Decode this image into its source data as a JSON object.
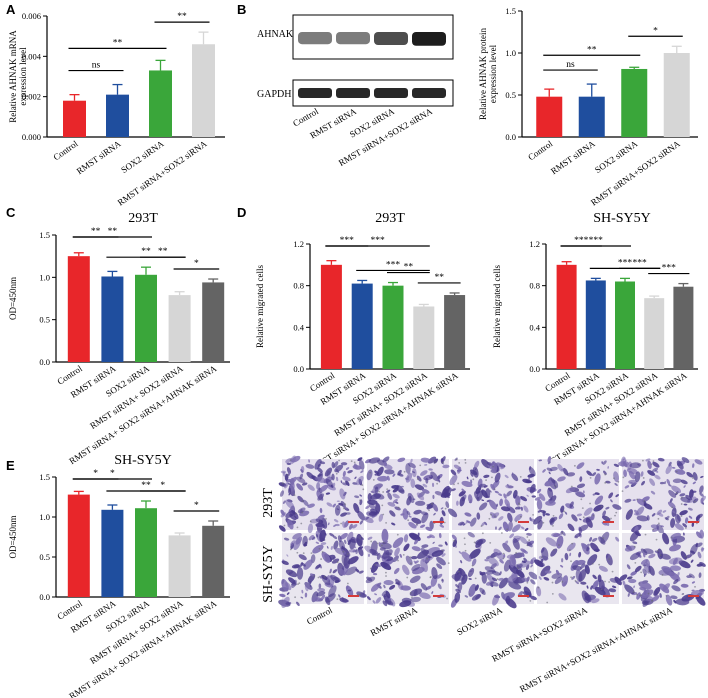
{
  "colors": {
    "control": "#e8262a",
    "rmst": "#1f4e9e",
    "sox2": "#3aa63a",
    "combo": "#d6d6d6",
    "rescue": "#646464",
    "stain_dark": "#4a3b8c",
    "stain_mid": "#7b6cb0",
    "background_well": "#ece8f1"
  },
  "panel_letters": [
    "A",
    "B",
    "C",
    "D",
    "E"
  ],
  "chart_data": [
    {
      "id": "A",
      "type": "bar",
      "title": "",
      "ylabel": "Relative AHNAK mRNA expression level",
      "ylim": [
        0,
        0.006
      ],
      "yticks": [
        "0.000",
        "0.002",
        "0.004",
        "0.006"
      ],
      "categories": [
        "Control",
        "RMST siRNA",
        "SOX2 siRNA",
        "RMST siRNA+SOX2 siRNA"
      ],
      "values": [
        0.0018,
        0.0021,
        0.0033,
        0.0046
      ],
      "errors": [
        0.0003,
        0.0005,
        0.0005,
        0.0006
      ],
      "significance": [
        {
          "from": 0,
          "to": 1,
          "label": "ns"
        },
        {
          "from": 0,
          "to": 2,
          "label": "**"
        },
        {
          "from": 2,
          "to": 3,
          "label": "**"
        }
      ]
    },
    {
      "id": "B",
      "type": "bar",
      "title": "",
      "ylabel": "Relative AHNAK protein expression level",
      "ylim": [
        0,
        1.5
      ],
      "yticks": [
        "0.0",
        "0.5",
        "1.0",
        "1.5"
      ],
      "categories": [
        "Control",
        "RMST siRNA",
        "SOX2 siRNA",
        "RMST siRNA+SOX2 siRNA"
      ],
      "values": [
        0.48,
        0.48,
        0.81,
        1.0
      ],
      "errors": [
        0.09,
        0.15,
        0.02,
        0.08
      ],
      "significance": [
        {
          "from": 0,
          "to": 1,
          "label": "ns"
        },
        {
          "from": 0,
          "to": 2,
          "label": "**"
        },
        {
          "from": 2,
          "to": 3,
          "label": "*"
        }
      ]
    },
    {
      "id": "C",
      "type": "bar",
      "title": "293T",
      "ylabel": "OD=450nm",
      "ylim": [
        0,
        1.5
      ],
      "yticks": [
        "0.0",
        "0.5",
        "1.0",
        "1.5"
      ],
      "categories": [
        "Control",
        "RMST siRNA",
        "SOX2 siRNA",
        "RMST siRNA+ SOX2 siRNA",
        "RMST siRNA+ SOX2 siRNA+AHNAK siRNA"
      ],
      "values": [
        1.25,
        1.01,
        1.03,
        0.79,
        0.94
      ],
      "errors": [
        0.04,
        0.06,
        0.09,
        0.04,
        0.04
      ],
      "significance": [
        {
          "from": 0,
          "to": 1,
          "label": "**"
        },
        {
          "from": 0,
          "to": 2,
          "label": "**"
        },
        {
          "from": 1,
          "to": 3,
          "label": "**"
        },
        {
          "from": 2,
          "to": 3,
          "label": "**"
        },
        {
          "from": 3,
          "to": 4,
          "label": "*"
        }
      ]
    },
    {
      "id": "D1",
      "type": "bar",
      "title": "293T",
      "ylabel": "Relative migrated cells",
      "ylim": [
        0,
        1.2
      ],
      "yticks": [
        "0.0",
        "0.4",
        "0.8",
        "1.2"
      ],
      "categories": [
        "Control",
        "RMST siRNA",
        "SOX2 siRNA",
        "RMST siRNA+ SOX2 siRNA",
        "RMST siRNA+ SOX2 siRNA+AHNAK siRNA"
      ],
      "values": [
        1.0,
        0.82,
        0.8,
        0.6,
        0.71
      ],
      "errors": [
        0.04,
        0.03,
        0.03,
        0.02,
        0.02
      ],
      "significance": [
        {
          "from": 0,
          "to": 1,
          "label": "***"
        },
        {
          "from": 0,
          "to": 3,
          "label": "***"
        },
        {
          "from": 1,
          "to": 3,
          "label": "***"
        },
        {
          "from": 2,
          "to": 3,
          "label": "**"
        },
        {
          "from": 3,
          "to": 4,
          "label": "**"
        }
      ]
    },
    {
      "id": "D2",
      "type": "bar",
      "title": "SH-SY5Y",
      "ylabel": "Relative migrated cells",
      "ylim": [
        0,
        1.2
      ],
      "yticks": [
        "0.0",
        "0.4",
        "0.8",
        "1.2"
      ],
      "categories": [
        "Control",
        "RMST siRNA",
        "SOX2 siRNA",
        "RMST siRNA+ SOX2 siRNA",
        "RMST siRNA+ SOX2 siRNA+AHNAK siRNA"
      ],
      "values": [
        1.0,
        0.85,
        0.84,
        0.68,
        0.79
      ],
      "errors": [
        0.03,
        0.02,
        0.03,
        0.02,
        0.03
      ],
      "significance": [
        {
          "from": 0,
          "to": 1,
          "label": "***"
        },
        {
          "from": 0,
          "to": 2,
          "label": "***"
        },
        {
          "from": 1,
          "to": 3,
          "label": "***"
        },
        {
          "from": 2,
          "to": 3,
          "label": "***"
        },
        {
          "from": 3,
          "to": 4,
          "label": "***"
        }
      ]
    },
    {
      "id": "E",
      "type": "bar",
      "title": "SH-SY5Y",
      "ylabel": "OD=450nm",
      "ylim": [
        0,
        1.5
      ],
      "yticks": [
        "0.0",
        "0.5",
        "1.0",
        "1.5"
      ],
      "categories": [
        "Control",
        "RMST siRNA",
        "SOX2 siRNA",
        "RMST siRNA+ SOX2 siRNA",
        "RMST siRNA+ SOX2 siRNA+AHNAK siRNA"
      ],
      "values": [
        1.28,
        1.09,
        1.11,
        0.77,
        0.89
      ],
      "errors": [
        0.04,
        0.06,
        0.09,
        0.03,
        0.06
      ],
      "significance": [
        {
          "from": 0,
          "to": 1,
          "label": "*"
        },
        {
          "from": 0,
          "to": 2,
          "label": "*"
        },
        {
          "from": 1,
          "to": 3,
          "label": "**"
        },
        {
          "from": 2,
          "to": 3,
          "label": "*"
        },
        {
          "from": 3,
          "to": 4,
          "label": "*"
        }
      ]
    }
  ],
  "western_blot": {
    "labels": [
      "AHNAK",
      "GAPDH"
    ],
    "lanes": [
      "Control",
      "RMST siRNA",
      "SOX2 siRNA",
      "RMST siRNA+SOX2 siRNA"
    ],
    "ahnak_intensity": [
      0.55,
      0.55,
      0.75,
      0.95
    ],
    "gapdh_intensity": [
      0.9,
      0.9,
      0.9,
      0.9
    ]
  },
  "micrographs": {
    "row_labels": [
      "293T",
      "SH-SY5Y"
    ],
    "column_labels": [
      "Control",
      "RMST siRNA",
      "SOX2 siRNA",
      "RMST siRNA+SOX2 siRNA",
      "RMST siRNA+SOX2 siRNA+AHNAK siRNA"
    ],
    "density_293T": [
      0.9,
      0.7,
      0.7,
      0.4,
      0.6
    ],
    "density_SHSY5Y": [
      0.85,
      0.6,
      0.6,
      0.35,
      0.55
    ]
  }
}
